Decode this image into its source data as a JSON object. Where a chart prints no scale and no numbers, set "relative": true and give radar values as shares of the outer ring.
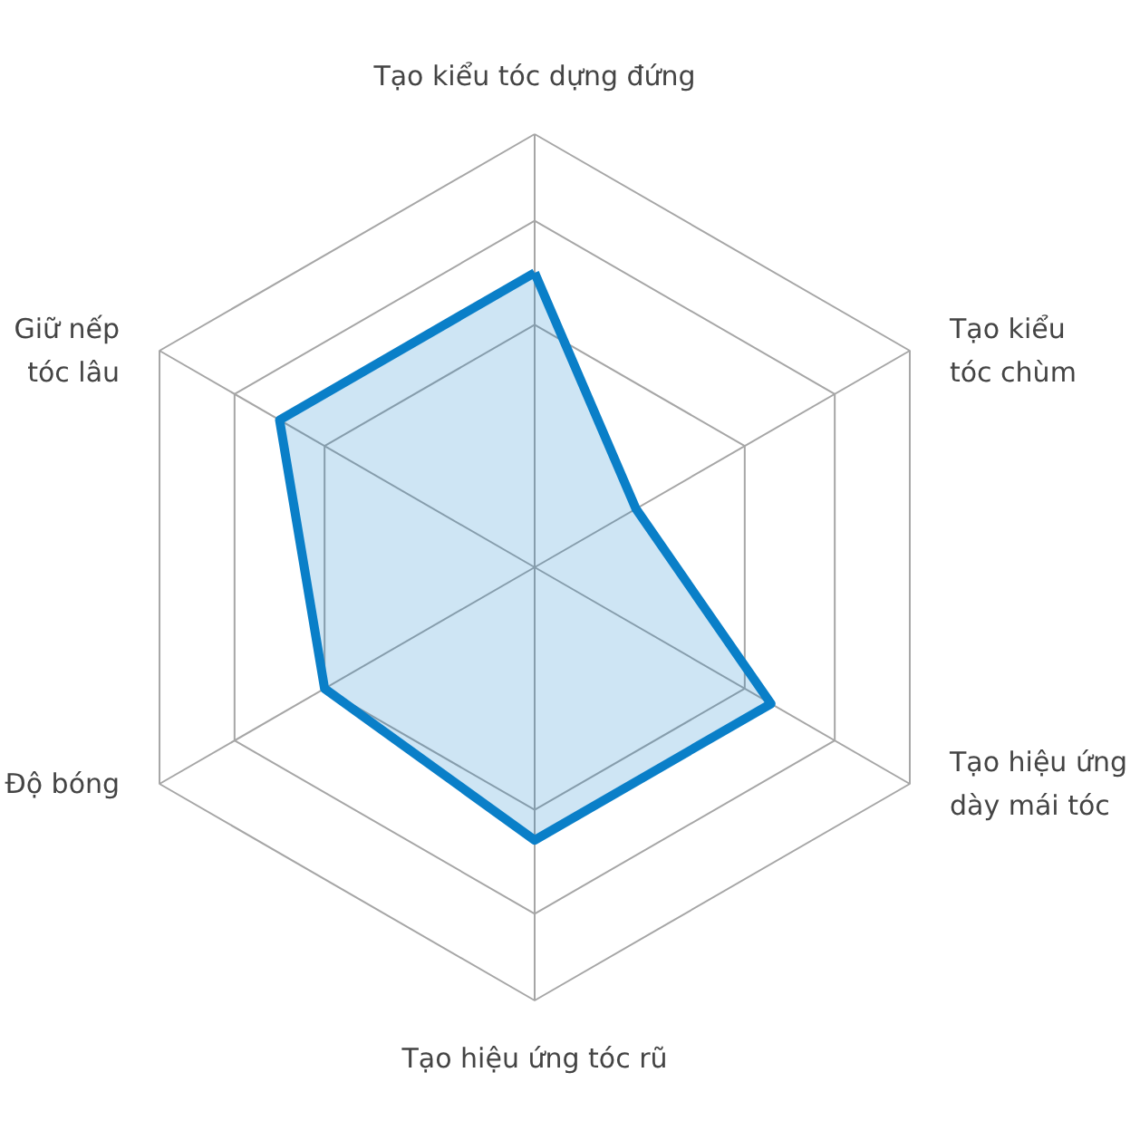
{
  "chart_data": {
    "type": "radar",
    "categories": [
      "Tạo kiểu tóc dựng đứng",
      "Tạo kiểu\ntóc chùm",
      "Tạo hiệu ứng\ndày mái tóc",
      "Tạo hiệu ứng tóc rũ",
      "Độ bóng",
      "Giữ nếp\ntóc lâu"
    ],
    "relative": true,
    "grid": true,
    "series": [
      {
        "color": "#0a7fc8",
        "values": [
          0.68,
          0.27,
          0.63,
          0.63,
          0.56,
          0.68
        ]
      }
    ]
  }
}
